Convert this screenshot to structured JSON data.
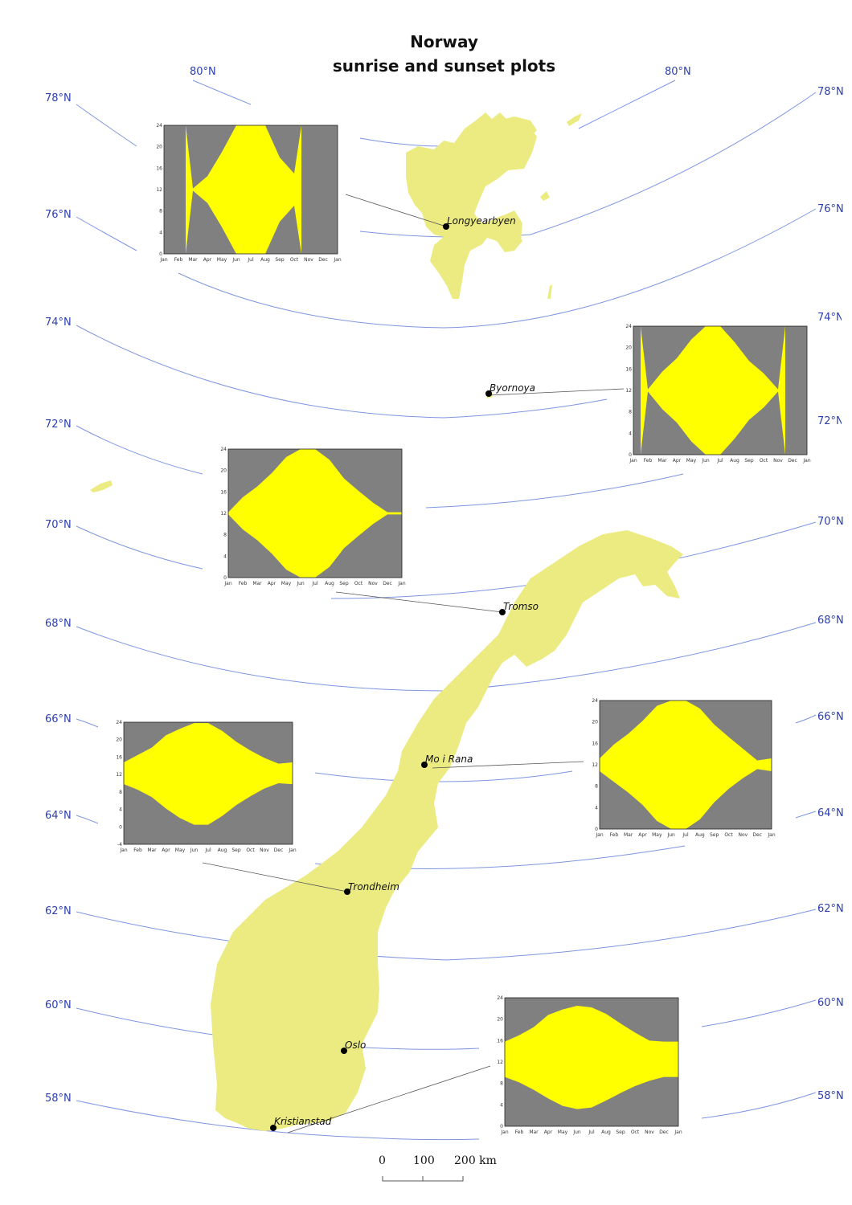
{
  "title": {
    "line1": "Norway",
    "line2": "sunrise and sunset plots"
  },
  "latitude_labels": [
    "80°N",
    "80°N",
    "78°N",
    "78°N",
    "76°N",
    "76°N",
    "74°N",
    "74°N",
    "72°N",
    "72°N",
    "70°N",
    "70°N",
    "68°N",
    "68°N",
    "66°N",
    "66°N",
    "64°N",
    "64°N",
    "62°N",
    "62°N",
    "60°N",
    "60°N",
    "58°N",
    "58°N"
  ],
  "cities": [
    "Longyearbyen",
    "Byornoya",
    "Tromso",
    "Mo i Rana",
    "Trondheim",
    "Oslo",
    "Kristianstad"
  ],
  "scale_bar": {
    "labels": [
      "0",
      "100",
      "200 km"
    ]
  },
  "colors": {
    "land": "#ebeb82",
    "graticule": "#7d95e0",
    "daylight": "#ffff00",
    "night": "#808080",
    "leader": "#555555"
  },
  "chart_data": [
    {
      "type": "area",
      "location": "Longyearbyen",
      "x": [
        "Jan",
        "Feb",
        "Mar",
        "Apr",
        "May",
        "Jun",
        "Jul",
        "Aug",
        "Sep",
        "Oct",
        "Nov",
        "Dec",
        "Jan"
      ],
      "yticks": [
        "0",
        "4",
        "8",
        "12",
        "16",
        "20",
        "24"
      ],
      "ylim": [
        0,
        24
      ],
      "sunrise": [
        null,
        null,
        11.8,
        9.5,
        5,
        0,
        0,
        0,
        6,
        9,
        null,
        null,
        null
      ],
      "sunset": [
        null,
        null,
        12.2,
        14.5,
        19,
        24,
        24,
        24,
        18,
        15,
        null,
        null,
        null
      ]
    },
    {
      "type": "area",
      "location": "Byornoya",
      "x": [
        "Jan",
        "Feb",
        "Mar",
        "Apr",
        "May",
        "Jun",
        "Jul",
        "Aug",
        "Sep",
        "Oct",
        "Nov",
        "Dec",
        "Jan"
      ],
      "yticks": [
        "0",
        "4",
        "8",
        "12",
        "16",
        "20",
        "24"
      ],
      "ylim": [
        0,
        24
      ],
      "sunrise": [
        null,
        11.8,
        8.5,
        6,
        2.5,
        0,
        0,
        3,
        6.5,
        8.8,
        11.8,
        null,
        null
      ],
      "sunset": [
        null,
        12.2,
        15.5,
        18,
        21.5,
        24,
        24,
        21,
        17.5,
        15.2,
        12.2,
        null,
        null
      ]
    },
    {
      "type": "area",
      "location": "Tromso",
      "x": [
        "Jan",
        "Feb",
        "Mar",
        "Apr",
        "May",
        "Jun",
        "Jul",
        "Aug",
        "Sep",
        "Oct",
        "Nov",
        "Dec",
        "Jan"
      ],
      "yticks": [
        "0",
        "4",
        "8",
        "12",
        "16",
        "20",
        "24"
      ],
      "ylim": [
        0,
        24
      ],
      "sunrise": [
        11.8,
        9,
        7,
        4.5,
        1.5,
        0,
        0,
        2,
        5.5,
        7.8,
        10,
        11.8,
        11.8
      ],
      "sunset": [
        12.2,
        15,
        17,
        19.5,
        22.5,
        24,
        24,
        22,
        18.5,
        16.2,
        14,
        12.2,
        12.2
      ]
    },
    {
      "type": "area",
      "location": "Trondheim",
      "x": [
        "Jan",
        "Feb",
        "Mar",
        "Apr",
        "May",
        "Jun",
        "Jul",
        "Aug",
        "Sep",
        "Oct",
        "Nov",
        "Dec",
        "Jan"
      ],
      "yticks": [
        "-4",
        "0",
        "4",
        "8",
        "12",
        "16",
        "20",
        "24"
      ],
      "ylim": [
        -4,
        24
      ],
      "sunrise": [
        9.8,
        8.5,
        6.8,
        4.2,
        2,
        0.5,
        0.5,
        2.5,
        5,
        7,
        8.8,
        10,
        9.8
      ],
      "sunset": [
        14.8,
        16.5,
        18.2,
        21,
        22.5,
        23.8,
        23.8,
        22,
        19.5,
        17.5,
        15.8,
        14.5,
        14.8
      ]
    },
    {
      "type": "area",
      "location": "Mo i Rana",
      "x": [
        "Jan",
        "Feb",
        "Mar",
        "Apr",
        "May",
        "Jun",
        "Jul",
        "Aug",
        "Sep",
        "Oct",
        "Nov",
        "Dec",
        "Jan"
      ],
      "yticks": [
        "0",
        "4",
        "8",
        "12",
        "16",
        "20",
        "24"
      ],
      "ylim": [
        0,
        24
      ],
      "sunrise": [
        10.8,
        8.8,
        6.8,
        4.5,
        1.5,
        0,
        0,
        1.8,
        5,
        7.5,
        9.5,
        11.2,
        10.8
      ],
      "sunset": [
        13.2,
        15.8,
        17.8,
        20.2,
        23,
        24,
        24,
        22.5,
        19.5,
        17.2,
        15,
        12.8,
        13.2
      ]
    },
    {
      "type": "area",
      "location": "Kristianstad",
      "x": [
        "Jan",
        "Feb",
        "Mar",
        "Apr",
        "May",
        "Jun",
        "Jul",
        "Aug",
        "Sep",
        "Oct",
        "Nov",
        "Dec",
        "Jan"
      ],
      "yticks": [
        "0",
        "4",
        "8",
        "12",
        "16",
        "20",
        "24"
      ],
      "ylim": [
        0,
        24
      ],
      "sunrise": [
        9.2,
        8.2,
        6.8,
        5.2,
        3.8,
        3.2,
        3.5,
        4.8,
        6.2,
        7.5,
        8.5,
        9.2,
        9.2
      ],
      "sunset": [
        15.8,
        17,
        18.5,
        20.8,
        21.8,
        22.5,
        22.2,
        21,
        19.2,
        17.5,
        16,
        15.8,
        15.8
      ]
    }
  ]
}
